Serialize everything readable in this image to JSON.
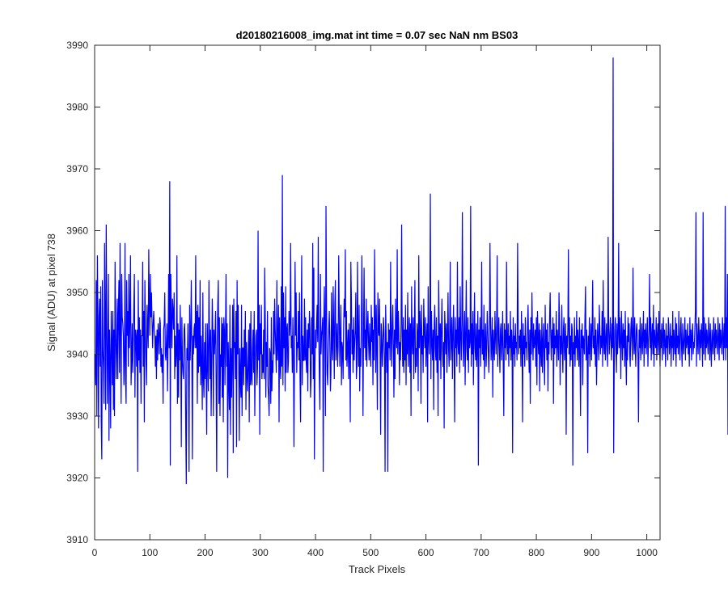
{
  "chart_data": {
    "type": "line",
    "title": "d20180216008_img.mat int time = 0.07 sec  NaN nm BS03",
    "xlabel": "Track Pixels",
    "ylabel": "Signal (ADU) at pixel 738",
    "xlim": [
      0,
      1024
    ],
    "ylim": [
      3910,
      3990
    ],
    "xticks": [
      0,
      100,
      200,
      300,
      400,
      500,
      600,
      700,
      800,
      900,
      1000
    ],
    "yticks": [
      3910,
      3920,
      3930,
      3940,
      3950,
      3960,
      3970,
      3980,
      3990
    ],
    "grid": false,
    "legend": "none",
    "series": [
      {
        "color": "#0000ff",
        "values": [
          3940,
          3935,
          3952,
          3930,
          3956,
          3945,
          3928,
          3946,
          3949,
          3938,
          3951,
          3929,
          3923,
          3952,
          3941,
          3938,
          3932,
          3958,
          3946,
          3931,
          3961,
          3945,
          3932,
          3940,
          3953,
          3926,
          3944,
          3939,
          3928,
          3947,
          3942,
          3935,
          3947,
          3931,
          3944,
          3930,
          3955,
          3944,
          3936,
          3941,
          3949,
          3936,
          3947,
          3952,
          3937,
          3958,
          3944,
          3932,
          3953,
          3946,
          3945,
          3943,
          3935,
          3939,
          3958,
          3936,
          3932,
          3952,
          3943,
          3947,
          3938,
          3953,
          3941,
          3946,
          3956,
          3935,
          3939,
          3945,
          3937,
          3942,
          3948,
          3953,
          3933,
          3944,
          3943,
          3938,
          3944,
          3921,
          3952,
          3939,
          3946,
          3937,
          3944,
          3932,
          3943,
          3943,
          3955,
          3938,
          3947,
          3929,
          3952,
          3944,
          3939,
          3935,
          3948,
          3944,
          3941,
          3957,
          3948,
          3943,
          3953,
          3946,
          3950,
          3945,
          3941,
          3945,
          3947,
          3944,
          3943,
          3938,
          3943,
          3936,
          3944,
          3939,
          3945,
          3943,
          3940,
          3946,
          3945,
          3938,
          3941,
          3937,
          3940,
          3932,
          3944,
          3945,
          3950,
          3940,
          3939,
          3942,
          3945,
          3934,
          3942,
          3953,
          3941,
          3968,
          3922,
          3953,
          3946,
          3941,
          3949,
          3947,
          3944,
          3950,
          3936,
          3943,
          3938,
          3940,
          3956,
          3932,
          3945,
          3933,
          3944,
          3939,
          3948,
          3941,
          3925,
          3946,
          3939,
          3937,
          3936,
          3944,
          3945,
          3940,
          3928,
          3919,
          3941,
          3939,
          3945,
          3937,
          3921,
          3948,
          3939,
          3943,
          3952,
          3941,
          3923,
          3943,
          3940,
          3944,
          3945,
          3941,
          3956,
          3941,
          3947,
          3932,
          3948,
          3937,
          3946,
          3938,
          3952,
          3935,
          3943,
          3938,
          3931,
          3950,
          3936,
          3933,
          3942,
          3936,
          3945,
          3936,
          3927,
          3945,
          3939,
          3934,
          3952,
          3943,
          3936,
          3944,
          3930,
          3939,
          3949,
          3944,
          3930,
          3944,
          3940,
          3943,
          3947,
          3936,
          3921,
          3942,
          3948,
          3952,
          3932,
          3946,
          3930,
          3940,
          3938,
          3946,
          3933,
          3945,
          3929,
          3946,
          3944,
          3935,
          3944,
          3953,
          3938,
          3945,
          3920,
          3942,
          3936,
          3931,
          3948,
          3927,
          3941,
          3933,
          3940,
          3948,
          3924,
          3949,
          3941,
          3942,
          3936,
          3947,
          3925,
          3952,
          3940,
          3948,
          3938,
          3926,
          3941,
          3936,
          3933,
          3948,
          3930,
          3941,
          3941,
          3935,
          3944,
          3938,
          3947,
          3931,
          3942,
          3937,
          3934,
          3939,
          3944,
          3929,
          3945,
          3935,
          3947,
          3936,
          3935,
          3941,
          3944,
          3937,
          3947,
          3930,
          3939,
          3943,
          3944,
          3935,
          3938,
          3960,
          3939,
          3948,
          3927,
          3945,
          3940,
          3948,
          3936,
          3940,
          3937,
          3944,
          3936,
          3954,
          3946,
          3933,
          3942,
          3938,
          3947,
          3935,
          3933,
          3930,
          3941,
          3940,
          3932,
          3946,
          3934,
          3939,
          3937,
          3947,
          3940,
          3949,
          3944,
          3941,
          3937,
          3952,
          3939,
          3942,
          3948,
          3929,
          3946,
          3938,
          3936,
          3951,
          3938,
          3969,
          3935,
          3950,
          3941,
          3946,
          3934,
          3951,
          3937,
          3944,
          3945,
          3937,
          3939,
          3947,
          3943,
          3945,
          3958,
          3941,
          3943,
          3937,
          3946,
          3940,
          3925,
          3940,
          3955,
          3943,
          3950,
          3937,
          3942,
          3941,
          3947,
          3939,
          3950,
          3936,
          3929,
          3945,
          3956,
          3935,
          3943,
          3939,
          3939,
          3949,
          3939,
          3946,
          3939,
          3937,
          3944,
          3934,
          3945,
          3941,
          3947,
          3944,
          3933,
          3936,
          3946,
          3940,
          3958,
          3936,
          3954,
          3923,
          3938,
          3944,
          3941,
          3945,
          3948,
          3942,
          3959,
          3943,
          3936,
          3931,
          3953,
          3940,
          3943,
          3944,
          3946,
          3921,
          3945,
          3951,
          3943,
          3930,
          3964,
          3948,
          3937,
          3935,
          3940,
          3944,
          3947,
          3942,
          3934,
          3937,
          3950,
          3941,
          3939,
          3951,
          3944,
          3936,
          3948,
          3952,
          3939,
          3942,
          3945,
          3938,
          3941,
          3956,
          3947,
          3938,
          3943,
          3948,
          3935,
          3942,
          3941,
          3936,
          3945,
          3949,
          3946,
          3957,
          3939,
          3947,
          3938,
          3941,
          3944,
          3936,
          3945,
          3941,
          3929,
          3955,
          3949,
          3940,
          3944,
          3937,
          3946,
          3939,
          3942,
          3944,
          3950,
          3936,
          3938,
          3955,
          3943,
          3938,
          3948,
          3934,
          3941,
          3938,
          3945,
          3956,
          3945,
          3930,
          3943,
          3954,
          3941,
          3944,
          3939,
          3949,
          3938,
          3944,
          3947,
          3942,
          3939,
          3945,
          3941,
          3938,
          3948,
          3942,
          3946,
          3935,
          3944,
          3939,
          3957,
          3946,
          3937,
          3948,
          3941,
          3931,
          3950,
          3944,
          3943,
          3949,
          3940,
          3927,
          3945,
          3943,
          3938,
          3941,
          3946,
          3944,
          3939,
          3921,
          3948,
          3943,
          3937,
          3942,
          3921,
          3945,
          3941,
          3944,
          3939,
          3955,
          3943,
          3938,
          3945,
          3948,
          3941,
          3933,
          3944,
          3936,
          3949,
          3943,
          3941,
          3957,
          3940,
          3947,
          3944,
          3935,
          3942,
          3939,
          3945,
          3961,
          3943,
          3938,
          3946,
          3937,
          3944,
          3939,
          3948,
          3935,
          3944,
          3940,
          3950,
          3938,
          3942,
          3946,
          3937,
          3945,
          3930,
          3951,
          3942,
          3940,
          3946,
          3936,
          3944,
          3952,
          3937,
          3941,
          3938,
          3945,
          3943,
          3934,
          3956,
          3941,
          3947,
          3944,
          3932,
          3948,
          3940,
          3943,
          3937,
          3949,
          3944,
          3941,
          3946,
          3938,
          3942,
          3945,
          3929,
          3951,
          3943,
          3940,
          3944,
          3966,
          3936,
          3947,
          3942,
          3939,
          3944,
          3931,
          3945,
          3948,
          3941,
          3939,
          3946,
          3937,
          3943,
          3930,
          3952,
          3945,
          3939,
          3945,
          3936,
          3944,
          3949,
          3941,
          3938,
          3942,
          3928,
          3947,
          3944,
          3940,
          3945,
          3937,
          3943,
          3950,
          3941,
          3938,
          3944,
          3955,
          3939,
          3942,
          3946,
          3936,
          3943,
          3948,
          3940,
          3929,
          3946,
          3941,
          3944,
          3938,
          3955,
          3942,
          3940,
          3946,
          3937,
          3951,
          3943,
          3939,
          3945,
          3963,
          3942,
          3938,
          3944,
          3947,
          3935,
          3943,
          3952,
          3941,
          3939,
          3946,
          3937,
          3944,
          3941,
          3942,
          3964,
          3938,
          3945,
          3940,
          3947,
          3935,
          3943,
          3950,
          3941,
          3939,
          3945,
          3938,
          3942,
          3947,
          3922,
          3944,
          3941,
          3946,
          3938,
          3943,
          3955,
          3940,
          3944,
          3939,
          3948,
          3936,
          3942,
          3945,
          3938,
          3941,
          3947,
          3944,
          3940,
          3937,
          3943,
          3958,
          3945,
          3939,
          3942,
          3946,
          3933,
          3944,
          3941,
          3939,
          3947,
          3943,
          3940,
          3945,
          3956,
          3938,
          3942,
          3946,
          3941,
          3937,
          3944,
          3945,
          3939,
          3942,
          3947,
          3938,
          3930,
          3945,
          3941,
          3944,
          3939,
          3955,
          3942,
          3940,
          3945,
          3938,
          3943,
          3941,
          3947,
          3939,
          3944,
          3942,
          3924,
          3946,
          3940,
          3943,
          3938,
          3945,
          3941,
          3942,
          3939,
          3958,
          3946,
          3940,
          3943,
          3941,
          3944,
          3938,
          3947,
          3942,
          3929,
          3945,
          3940,
          3943,
          3938,
          3946,
          3941,
          3942,
          3939,
          3945,
          3948,
          3941,
          3937,
          3944,
          3932,
          3946,
          3940,
          3950,
          3943,
          3939,
          3945,
          3941,
          3942,
          3944,
          3938,
          3946,
          3935,
          3947,
          3943,
          3940,
          3945,
          3934,
          3944,
          3941,
          3938,
          3946,
          3937,
          3942,
          3945,
          3939,
          3935,
          3948,
          3941,
          3944,
          3939,
          3945,
          3934,
          3942,
          3940,
          3946,
          3950,
          3943,
          3939,
          3944,
          3941,
          3946,
          3932,
          3945,
          3940,
          3943,
          3941,
          3947,
          3938,
          3944,
          3942,
          3939,
          3950,
          3945,
          3935,
          3943,
          3940,
          3948,
          3941,
          3937,
          3944,
          3946,
          3939,
          3942,
          3945,
          3927,
          3943,
          3941,
          3944,
          3957,
          3940,
          3946,
          3938,
          3943,
          3939,
          3945,
          3944,
          3922,
          3942,
          3940,
          3946,
          3938,
          3943,
          3941,
          3947,
          3939,
          3944,
          3942,
          3938,
          3946,
          3940,
          3930,
          3944,
          3941,
          3945,
          3935,
          3943,
          3942,
          3940,
          3946,
          3951,
          3939,
          3944,
          3941,
          3924,
          3943,
          3940,
          3946,
          3938,
          3942,
          3945,
          3939,
          3944,
          3952,
          3941,
          3943,
          3940,
          3946,
          3938,
          3944,
          3935,
          3941,
          3945,
          3942,
          3939,
          3948,
          3944,
          3940,
          3943,
          3941,
          3947,
          3938,
          3952,
          3942,
          3940,
          3946,
          3939,
          3942,
          3945,
          3941,
          3938,
          3959,
          3944,
          3940,
          3943,
          3946,
          3942,
          3939,
          3945,
          3941,
          3988,
          3924,
          3938,
          3944,
          3946,
          3941,
          3937,
          3945,
          3940,
          3943,
          3958,
          3941,
          3946,
          3942,
          3936,
          3947,
          3943,
          3939,
          3945,
          3941,
          3944,
          3938,
          3947,
          3940,
          3935,
          3943,
          3939,
          3946,
          3942,
          3945,
          3940,
          3938,
          3944,
          3946,
          3942,
          3939,
          3954,
          3943,
          3940,
          3946,
          3941,
          3938,
          3944,
          3945,
          3942,
          3940,
          3929,
          3944,
          3941,
          3946,
          3939,
          3942,
          3945,
          3940,
          3943,
          3947,
          3938,
          3944,
          3941,
          3945,
          3940,
          3943,
          3946,
          3938,
          3942,
          3944,
          3953,
          3941,
          3946,
          3939,
          3943,
          3945,
          3940,
          3948,
          3938,
          3944,
          3942,
          3941,
          3946,
          3939,
          3943,
          3945,
          3940,
          3947,
          3942,
          3938,
          3944,
          3941,
          3945,
          3939,
          3943,
          3946,
          3940,
          3944,
          3942,
          3938,
          3945,
          3941,
          3943,
          3939,
          3946,
          3944,
          3940,
          3942,
          3945,
          3938,
          3943,
          3941,
          3947,
          3939,
          3944,
          3942,
          3940,
          3946,
          3938,
          3945,
          3941,
          3943,
          3940,
          3947,
          3942,
          3939,
          3944,
          3946,
          3941,
          3938,
          3945,
          3942,
          3940,
          3943,
          3946,
          3939,
          3944,
          3941,
          3942,
          3945,
          3940,
          3943,
          3938,
          3946,
          3941,
          3944,
          3939,
          3943,
          3945,
          3940,
          3942,
          3941,
          3944,
          3947,
          3963,
          3938,
          3945,
          3942,
          3940,
          3946,
          3943,
          3939,
          3944,
          3941,
          3945,
          3942,
          3938,
          3963,
          3940,
          3946,
          3943,
          3939,
          3945,
          3941,
          3944,
          3942,
          3940,
          3946,
          3943,
          3939,
          3945,
          3941,
          3938,
          3944,
          3942,
          3940,
          3946,
          3943,
          3939,
          3945,
          3941,
          3944,
          3942,
          3940,
          3946,
          3943,
          3939,
          3945,
          3941,
          3944,
          3942,
          3940,
          3946,
          3943,
          3939,
          3945,
          3941,
          3964,
          3939,
          3946,
          3941,
          3953,
          3927,
          3944,
          3936,
          3948,
          3930,
          3941,
          3945,
          3948,
          3939,
          3944,
          3946,
          3941
        ]
      }
    ]
  }
}
